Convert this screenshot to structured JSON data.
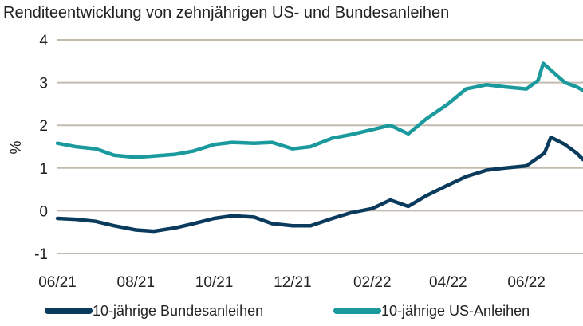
{
  "chart_data": {
    "type": "line",
    "title": "Renditeentwicklung von zehnjährigen US- und Bundesanleihen",
    "ylabel": "%",
    "xlabel": "",
    "ylim": [
      -1,
      4
    ],
    "yticks": [
      "4",
      "3",
      "2",
      "1",
      "0",
      "-1"
    ],
    "ytick_values": [
      4,
      3,
      2,
      1,
      0,
      -1
    ],
    "xticks": [
      {
        "label": "06/21",
        "x": "2021-06-01"
      },
      {
        "label": "08/21",
        "x": "2021-08-01"
      },
      {
        "label": "10/21",
        "x": "2021-10-01"
      },
      {
        "label": "12/21",
        "x": "2021-12-01"
      },
      {
        "label": "02/22",
        "x": "2022-02-01"
      },
      {
        "label": "04/22",
        "x": "2022-04-01"
      },
      {
        "label": "06/22",
        "x": "2022-06-01"
      }
    ],
    "xlim": [
      "2021-06-01",
      "2022-07-15"
    ],
    "grid": true,
    "legend_position": "bottom",
    "colors": {
      "bund": "#0b3b5c",
      "us": "#1a9a9c",
      "grid": "#c4bbb0"
    },
    "series": [
      {
        "name": "10-jährige Bundesanleihen",
        "key": "bund",
        "x": [
          "2021-06-01",
          "2021-06-15",
          "2021-07-01",
          "2021-07-15",
          "2021-08-01",
          "2021-08-15",
          "2021-09-01",
          "2021-09-15",
          "2021-10-01",
          "2021-10-15",
          "2021-11-01",
          "2021-11-15",
          "2021-12-01",
          "2021-12-15",
          "2022-01-01",
          "2022-01-15",
          "2022-02-01",
          "2022-02-15",
          "2022-03-01",
          "2022-03-15",
          "2022-04-01",
          "2022-04-15",
          "2022-05-01",
          "2022-05-15",
          "2022-06-01",
          "2022-06-15",
          "2022-06-20",
          "2022-07-01",
          "2022-07-10",
          "2022-07-15"
        ],
        "y": [
          -0.18,
          -0.2,
          -0.25,
          -0.35,
          -0.45,
          -0.48,
          -0.4,
          -0.3,
          -0.18,
          -0.12,
          -0.15,
          -0.3,
          -0.35,
          -0.35,
          -0.18,
          -0.05,
          0.05,
          0.25,
          0.1,
          0.35,
          0.6,
          0.8,
          0.95,
          1.0,
          1.05,
          1.35,
          1.72,
          1.55,
          1.35,
          1.2
        ]
      },
      {
        "name": "10-jährige US-Anleihen",
        "key": "us",
        "x": [
          "2021-06-01",
          "2021-06-15",
          "2021-07-01",
          "2021-07-15",
          "2021-08-01",
          "2021-08-15",
          "2021-09-01",
          "2021-09-15",
          "2021-10-01",
          "2021-10-15",
          "2021-11-01",
          "2021-11-15",
          "2021-12-01",
          "2021-12-15",
          "2022-01-01",
          "2022-01-15",
          "2022-02-01",
          "2022-02-15",
          "2022-03-01",
          "2022-03-15",
          "2022-04-01",
          "2022-04-15",
          "2022-05-01",
          "2022-05-15",
          "2022-06-01",
          "2022-06-10",
          "2022-06-14",
          "2022-07-01",
          "2022-07-10",
          "2022-07-15"
        ],
        "y": [
          1.58,
          1.5,
          1.45,
          1.3,
          1.25,
          1.28,
          1.32,
          1.4,
          1.55,
          1.6,
          1.58,
          1.6,
          1.45,
          1.5,
          1.7,
          1.78,
          1.9,
          2.0,
          1.8,
          2.15,
          2.5,
          2.85,
          2.95,
          2.9,
          2.85,
          3.05,
          3.45,
          3.0,
          2.9,
          2.82
        ]
      }
    ]
  }
}
